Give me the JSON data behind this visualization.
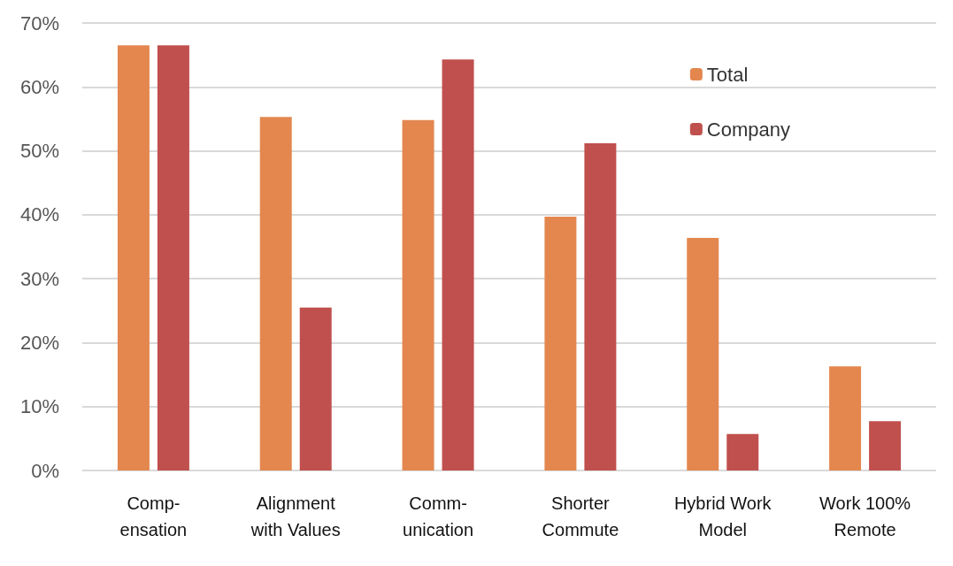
{
  "chart_data": {
    "type": "bar",
    "categories": [
      "Comp-\nensation",
      "Alignment\nwith Values",
      "Comm-\nunication",
      "Shorter\nCommute",
      "Hybrid Work\nModel",
      "Work 100%\nRemote"
    ],
    "series": [
      {
        "name": "Total",
        "color": "#e3874f",
        "values": [
          66.5,
          55.3,
          54.8,
          39.7,
          36.4,
          16.3
        ]
      },
      {
        "name": "Company",
        "color": "#c0504d",
        "values": [
          66.5,
          25.5,
          64.3,
          51.2,
          5.7,
          7.7
        ]
      }
    ],
    "ylim": [
      0,
      70
    ],
    "yticks": [
      {
        "value": 0,
        "label": "0%"
      },
      {
        "value": 10,
        "label": "10%"
      },
      {
        "value": 20,
        "label": "20%"
      },
      {
        "value": 30,
        "label": "30%"
      },
      {
        "value": 40,
        "label": "40%"
      },
      {
        "value": 50,
        "label": "50%"
      },
      {
        "value": 60,
        "label": "60%"
      },
      {
        "value": 70,
        "label": "70%"
      }
    ],
    "grid": "y",
    "legend": "top right"
  }
}
